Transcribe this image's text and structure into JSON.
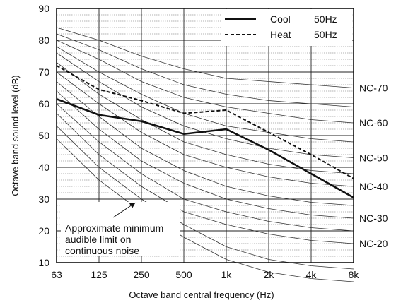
{
  "chart_data": {
    "type": "line",
    "xlabel": "Octave band central frequency (Hz)",
    "ylabel": "Octave band sound level (dB)",
    "x_categories": [
      "63",
      "125",
      "250",
      "500",
      "1k",
      "2k",
      "4k",
      "8k"
    ],
    "y_ticks": [
      10,
      20,
      30,
      40,
      50,
      60,
      70,
      80,
      90
    ],
    "ylim": [
      10,
      90
    ],
    "grid": {
      "major": true,
      "minor_dotted_every": 2
    },
    "legend": {
      "placement": "top-right",
      "entries": [
        {
          "name": "Cool",
          "suffix": "50Hz",
          "style": "solid"
        },
        {
          "name": "Heat",
          "suffix": "50Hz",
          "style": "dashed"
        }
      ]
    },
    "series": [
      {
        "name": "Cool",
        "style": "solid",
        "values": [
          61.5,
          56.5,
          54.5,
          50.5,
          52,
          45.5,
          38,
          30.5
        ]
      },
      {
        "name": "Heat",
        "style": "dashed",
        "values": [
          72,
          64.5,
          61,
          57,
          58,
          51,
          44,
          36.5
        ]
      }
    ],
    "nc_curves": [
      {
        "label": "",
        "values": [
          49,
          36,
          26,
          18,
          11,
          7,
          5,
          4
        ]
      },
      {
        "label": "",
        "values": [
          53,
          40,
          30,
          22,
          15,
          11,
          9,
          8
        ]
      },
      {
        "label": "NC-20",
        "values": [
          57,
          44,
          34,
          26,
          22,
          19,
          17,
          16
        ]
      },
      {
        "label": "",
        "values": [
          60,
          48,
          38,
          30,
          26,
          23,
          21,
          20
        ]
      },
      {
        "label": "NC-30",
        "values": [
          64,
          52,
          42,
          35,
          30,
          27,
          25,
          24
        ]
      },
      {
        "label": "",
        "values": [
          67,
          56,
          46,
          39,
          34,
          31,
          29,
          28
        ]
      },
      {
        "label": "NC-40",
        "values": [
          70,
          60,
          51,
          44,
          40,
          37,
          35,
          34
        ]
      },
      {
        "label": "",
        "values": [
          73,
          63,
          55,
          48,
          44,
          41,
          39,
          38
        ]
      },
      {
        "label": "NC-50",
        "values": [
          76,
          67,
          59,
          53,
          49,
          46,
          44,
          43
        ]
      },
      {
        "label": "",
        "values": [
          78,
          70,
          63,
          57,
          53,
          51,
          49,
          48
        ]
      },
      {
        "label": "NC-60",
        "values": [
          80,
          74,
          67,
          62,
          59,
          57,
          55,
          54
        ]
      },
      {
        "label": "",
        "values": [
          82,
          77,
          71,
          66,
          63,
          61,
          60,
          59
        ]
      },
      {
        "label": "NC-70",
        "values": [
          84,
          80,
          75,
          71,
          68,
          67,
          66,
          65
        ]
      }
    ],
    "annotation": {
      "lines": [
        "Approximate minimum",
        "audible limit on",
        "continuous noise"
      ]
    }
  }
}
